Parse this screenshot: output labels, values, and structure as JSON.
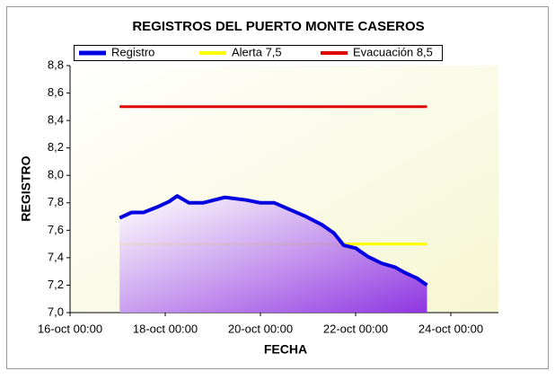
{
  "chart_data": {
    "type": "line",
    "title": "REGISTROS DEL PUERTO MONTE CASEROS",
    "x_label": "FECHA",
    "y_label": "REGISTRO",
    "xlim": [
      "16-oct 00:00",
      "25-oct 00:00"
    ],
    "xticks": [
      "16-oct 00:00",
      "18-oct 00:00",
      "20-oct 00:00",
      "22-oct 00:00",
      "24-oct 00:00"
    ],
    "ylim": [
      7.0,
      8.8
    ],
    "yticks": [
      {
        "value": 7.0,
        "label": "7,0"
      },
      {
        "value": 7.2,
        "label": "7,2"
      },
      {
        "value": 7.4,
        "label": "7,4"
      },
      {
        "value": 7.6,
        "label": "7,6"
      },
      {
        "value": 7.8,
        "label": "7,8"
      },
      {
        "value": 8.0,
        "label": "8,0"
      },
      {
        "value": 8.2,
        "label": "8,2"
      },
      {
        "value": 8.4,
        "label": "8,4"
      },
      {
        "value": 8.6,
        "label": "8,6"
      },
      {
        "value": 8.8,
        "label": "8,8"
      }
    ],
    "series": [
      {
        "name": "Registro",
        "color": "#0000e0",
        "area": true,
        "x": [
          "17-oct 01:00",
          "17-oct 07:00",
          "17-oct 13:00",
          "17-oct 20:00",
          "18-oct 02:00",
          "18-oct 06:00",
          "18-oct 12:00",
          "18-oct 19:00",
          "19-oct 06:00",
          "19-oct 17:00",
          "20-oct 00:00",
          "20-oct 07:00",
          "20-oct 15:00",
          "20-oct 23:00",
          "21-oct 07:00",
          "21-oct 13:00",
          "21-oct 18:00",
          "22-oct 00:00",
          "22-oct 06:00",
          "22-oct 13:00",
          "22-oct 20:00",
          "23-oct 01:00",
          "23-oct 07:00",
          "23-oct 12:00"
        ],
        "values": [
          7.69,
          7.73,
          7.73,
          7.77,
          7.81,
          7.85,
          7.8,
          7.8,
          7.84,
          7.82,
          7.8,
          7.8,
          7.75,
          7.7,
          7.64,
          7.58,
          7.49,
          7.47,
          7.41,
          7.36,
          7.33,
          7.29,
          7.25,
          7.2
        ]
      },
      {
        "name": "Alerta 7,5",
        "color": "#ffff00",
        "x": [
          "17-oct 01:00",
          "23-oct 12:00"
        ],
        "values": [
          7.5,
          7.5
        ]
      },
      {
        "name": "Evacuación 8,5",
        "color": "#e00000",
        "x": [
          "17-oct 01:00",
          "23-oct 12:00"
        ],
        "values": [
          8.5,
          8.5
        ]
      }
    ]
  }
}
